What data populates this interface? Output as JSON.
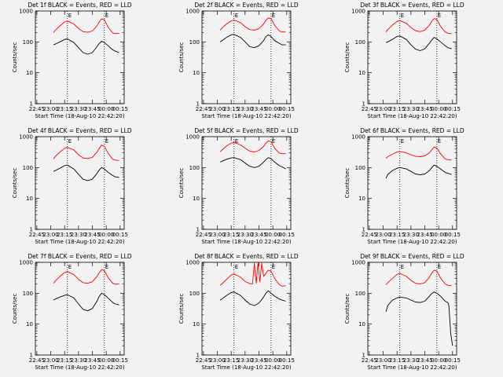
{
  "chart_data": [
    {
      "type": "line",
      "title": "Det 1f BLACK = Events, RED = LLD",
      "ylabel": "Counts/sec",
      "xlabel": "Start Time (18-Aug-10 22:42:20)",
      "xlim": [
        -16.6,
        79.4
      ],
      "ylim": [
        1,
        1000
      ],
      "yscale": "log",
      "x_ticks": [
        "22:45",
        "23:00",
        "23:15",
        "23:30",
        "23:45",
        "00:00",
        "00:15"
      ],
      "y_ticks": [
        "1",
        "10",
        "100",
        "1000"
      ],
      "markers": [
        {
          "x": 18,
          "label": "E"
        },
        {
          "x": 58,
          "label": "E"
        }
      ],
      "series": [
        {
          "color": "#ff0000",
          "x": [
            3,
            5,
            10,
            15,
            18,
            25,
            30,
            35,
            40,
            45,
            50,
            52,
            55,
            58,
            62,
            67,
            70,
            74
          ],
          "y": [
            200,
            240,
            330,
            440,
            470,
            380,
            270,
            215,
            205,
            225,
            330,
            420,
            560,
            520,
            300,
            195,
            185,
            190
          ]
        },
        {
          "color": "#000000",
          "x": [
            3,
            5,
            10,
            15,
            18,
            25,
            30,
            35,
            40,
            45,
            50,
            52,
            55,
            58,
            62,
            67,
            70,
            74
          ],
          "y": [
            80,
            85,
            100,
            120,
            125,
            95,
            65,
            45,
            40,
            45,
            70,
            85,
            105,
            95,
            75,
            55,
            50,
            45
          ]
        }
      ]
    },
    {
      "type": "line",
      "title": "Det 2f BLACK = Events, RED = LLD",
      "ylabel": "Counts/sec",
      "xlabel": "Start Time (18-Aug-10 22:42:20)",
      "xlim": [
        -16.6,
        79.4
      ],
      "ylim": [
        1,
        1000
      ],
      "yscale": "log",
      "x_ticks": [
        "22:45",
        "23:00",
        "23:15",
        "23:30",
        "23:45",
        "00:00",
        "00:15"
      ],
      "y_ticks": [
        "1",
        "10",
        "100",
        "1000"
      ],
      "markers": [
        {
          "x": 18,
          "label": "E"
        },
        {
          "x": 58,
          "label": "E"
        }
      ],
      "series": [
        {
          "color": "#ff0000",
          "x": [
            3,
            5,
            10,
            15,
            18,
            25,
            30,
            35,
            40,
            45,
            50,
            52,
            55,
            58,
            62,
            67,
            70,
            74
          ],
          "y": [
            240,
            280,
            380,
            480,
            510,
            420,
            310,
            250,
            240,
            270,
            380,
            470,
            600,
            560,
            340,
            225,
            210,
            210
          ]
        },
        {
          "color": "#000000",
          "x": [
            3,
            5,
            10,
            15,
            18,
            25,
            30,
            35,
            40,
            45,
            50,
            52,
            55,
            58,
            62,
            67,
            70,
            74
          ],
          "y": [
            100,
            110,
            140,
            170,
            175,
            140,
            100,
            70,
            65,
            75,
            110,
            140,
            170,
            150,
            110,
            90,
            80,
            80
          ]
        }
      ]
    },
    {
      "type": "line",
      "title": "Det 3f BLACK = Events, RED = LLD",
      "ylabel": "Counts/sec",
      "xlabel": "Start Time (18-Aug-10 22:42:20)",
      "xlim": [
        -16.6,
        79.4
      ],
      "ylim": [
        1,
        1000
      ],
      "yscale": "log",
      "x_ticks": [
        "22:45",
        "23:00",
        "23:15",
        "23:30",
        "23:45",
        "00:00",
        "00:15"
      ],
      "y_ticks": [
        "1",
        "10",
        "100",
        "1000"
      ],
      "markers": [
        {
          "x": 18,
          "label": "E"
        },
        {
          "x": 58,
          "label": "E"
        }
      ],
      "series": [
        {
          "color": "#ff0000",
          "x": [
            3,
            5,
            10,
            15,
            18,
            25,
            30,
            35,
            40,
            45,
            50,
            52,
            55,
            58,
            62,
            67,
            70,
            74
          ],
          "y": [
            210,
            250,
            350,
            460,
            490,
            400,
            290,
            230,
            215,
            240,
            350,
            440,
            570,
            530,
            320,
            210,
            190,
            185
          ]
        },
        {
          "color": "#000000",
          "x": [
            3,
            5,
            10,
            15,
            18,
            25,
            30,
            35,
            40,
            45,
            50,
            52,
            55,
            58,
            62,
            67,
            70,
            74
          ],
          "y": [
            95,
            100,
            120,
            150,
            155,
            120,
            80,
            58,
            52,
            60,
            90,
            110,
            140,
            125,
            100,
            75,
            65,
            60
          ]
        }
      ]
    },
    {
      "type": "line",
      "title": "Det 4f BLACK = Events, RED = LLD",
      "ylabel": "Counts/sec",
      "xlabel": "Start Time (18-Aug-10 22:42:20)",
      "xlim": [
        -16.6,
        79.4
      ],
      "ylim": [
        1,
        1000
      ],
      "yscale": "log",
      "x_ticks": [
        "22:45",
        "23:00",
        "23:15",
        "23:30",
        "23:45",
        "00:00",
        "00:15"
      ],
      "y_ticks": [
        "1",
        "10",
        "100",
        "1000"
      ],
      "markers": [
        {
          "x": 18,
          "label": "E"
        },
        {
          "x": 58,
          "label": "E"
        }
      ],
      "series": [
        {
          "color": "#ff0000",
          "x": [
            3,
            5,
            10,
            15,
            18,
            25,
            30,
            35,
            40,
            45,
            50,
            52,
            55,
            58,
            62,
            67,
            70,
            74
          ],
          "y": [
            190,
            230,
            320,
            420,
            450,
            370,
            260,
            205,
            195,
            215,
            315,
            400,
            530,
            490,
            290,
            185,
            175,
            170
          ]
        },
        {
          "color": "#000000",
          "x": [
            3,
            5,
            10,
            15,
            18,
            25,
            30,
            35,
            40,
            45,
            50,
            52,
            55,
            58,
            62,
            67,
            70,
            74
          ],
          "y": [
            75,
            80,
            95,
            115,
            120,
            90,
            60,
            42,
            38,
            42,
            65,
            80,
            100,
            90,
            70,
            55,
            50,
            48
          ]
        }
      ]
    },
    {
      "type": "line",
      "title": "Det 5f BLACK = Events, RED = LLD",
      "ylabel": "Counts/sec",
      "xlabel": "Start Time (18-Aug-10 22:42:20)",
      "xlim": [
        -16.6,
        79.4
      ],
      "ylim": [
        1,
        1000
      ],
      "yscale": "log",
      "x_ticks": [
        "22:45",
        "23:00",
        "23:15",
        "23:30",
        "23:45",
        "00:00",
        "00:15"
      ],
      "y_ticks": [
        "1",
        "10",
        "100",
        "1000"
      ],
      "markers": [
        {
          "x": 18,
          "label": "E"
        },
        {
          "x": 58,
          "label": "E"
        }
      ],
      "series": [
        {
          "color": "#ff0000",
          "x": [
            3,
            5,
            10,
            15,
            18,
            25,
            30,
            35,
            40,
            45,
            50,
            52,
            55,
            58,
            62,
            67,
            70,
            74
          ],
          "y": [
            320,
            370,
            500,
            620,
            650,
            540,
            420,
            340,
            320,
            360,
            480,
            590,
            730,
            690,
            420,
            290,
            280,
            280
          ]
        },
        {
          "color": "#000000",
          "x": [
            3,
            5,
            10,
            15,
            18,
            25,
            30,
            35,
            40,
            45,
            50,
            52,
            55,
            58,
            62,
            67,
            70,
            74
          ],
          "y": [
            150,
            160,
            185,
            205,
            210,
            180,
            140,
            110,
            100,
            110,
            150,
            175,
            210,
            195,
            150,
            115,
            105,
            90
          ]
        }
      ]
    },
    {
      "type": "line",
      "title": "Det 6f BLACK = Events, RED = LLD",
      "ylabel": "Counts/sec",
      "xlabel": "Start Time (18-Aug-10 22:42:20)",
      "xlim": [
        -16.6,
        79.4
      ],
      "ylim": [
        1,
        1000
      ],
      "yscale": "log",
      "x_ticks": [
        "22:45",
        "23:00",
        "23:15",
        "23:30",
        "23:45",
        "00:00",
        "00:15"
      ],
      "y_ticks": [
        "1",
        "10",
        "100",
        "1000"
      ],
      "markers": [
        {
          "x": 18,
          "label": "E"
        },
        {
          "x": 58,
          "label": "E"
        }
      ],
      "series": [
        {
          "color": "#ff0000",
          "x": [
            3,
            5,
            10,
            15,
            18,
            25,
            30,
            35,
            40,
            45,
            50,
            52,
            55,
            58,
            62,
            67,
            70,
            74
          ],
          "y": [
            200,
            225,
            270,
            320,
            330,
            300,
            260,
            230,
            225,
            240,
            300,
            360,
            460,
            430,
            280,
            190,
            180,
            175
          ]
        },
        {
          "color": "#000000",
          "x": [
            3,
            5,
            10,
            15,
            18,
            25,
            30,
            35,
            40,
            45,
            50,
            52,
            55,
            58,
            62,
            67,
            70,
            74
          ],
          "y": [
            45,
            60,
            80,
            95,
            100,
            90,
            75,
            62,
            58,
            62,
            80,
            95,
            120,
            110,
            90,
            70,
            65,
            60
          ]
        }
      ]
    },
    {
      "type": "line",
      "title": "Det 7f BLACK = Events, RED = LLD",
      "ylabel": "Counts/sec",
      "xlabel": "Start Time (18-Aug-10 22:42:20)",
      "xlim": [
        -16.6,
        79.4
      ],
      "ylim": [
        1,
        1000
      ],
      "yscale": "log",
      "x_ticks": [
        "22:45",
        "23:00",
        "23:15",
        "23:30",
        "23:45",
        "00:00",
        "00:15"
      ],
      "y_ticks": [
        "1",
        "10",
        "100",
        "1000"
      ],
      "markers": [
        {
          "x": 18,
          "label": "E"
        },
        {
          "x": 58,
          "label": "E"
        }
      ],
      "series": [
        {
          "color": "#ff0000",
          "x": [
            3,
            5,
            10,
            15,
            18,
            25,
            30,
            35,
            40,
            45,
            50,
            52,
            55,
            58,
            62,
            67,
            70,
            74
          ],
          "y": [
            210,
            250,
            350,
            470,
            500,
            400,
            280,
            220,
            210,
            235,
            350,
            440,
            580,
            540,
            320,
            210,
            195,
            200
          ]
        },
        {
          "color": "#000000",
          "x": [
            3,
            5,
            10,
            15,
            18,
            25,
            30,
            35,
            40,
            45,
            50,
            52,
            55,
            58,
            62,
            67,
            70,
            74
          ],
          "y": [
            60,
            65,
            75,
            85,
            90,
            70,
            45,
            30,
            27,
            32,
            55,
            75,
            100,
            90,
            70,
            50,
            45,
            42
          ]
        }
      ]
    },
    {
      "type": "line",
      "title": "Det 8f BLACK = Events, RED = LLD",
      "ylabel": "Counts/sec",
      "xlabel": "Start Time (18-Aug-10 22:42:20)",
      "xlim": [
        -16.6,
        79.4
      ],
      "ylim": [
        1,
        1000
      ],
      "yscale": "log",
      "x_ticks": [
        "22:45",
        "23:00",
        "23:15",
        "23:30",
        "23:45",
        "00:00",
        "00:15"
      ],
      "y_ticks": [
        "1",
        "10",
        "100",
        "1000"
      ],
      "markers": [
        {
          "x": 18,
          "label": "E"
        },
        {
          "x": 58,
          "label": "E"
        }
      ],
      "series": [
        {
          "color": "#ff0000",
          "x": [
            3,
            5,
            10,
            15,
            18,
            25,
            30,
            35,
            38,
            40,
            42,
            44,
            46,
            48,
            50,
            52,
            55,
            58,
            62,
            67,
            70,
            74
          ],
          "y": [
            180,
            200,
            280,
            390,
            420,
            330,
            240,
            205,
            200,
            950,
            210,
            950,
            230,
            950,
            350,
            420,
            560,
            520,
            300,
            190,
            170,
            175
          ]
        },
        {
          "color": "#000000",
          "x": [
            3,
            5,
            10,
            15,
            18,
            25,
            30,
            35,
            40,
            45,
            50,
            52,
            55,
            58,
            62,
            67,
            70,
            74
          ],
          "y": [
            60,
            65,
            85,
            105,
            110,
            85,
            60,
            45,
            40,
            48,
            75,
            95,
            120,
            100,
            80,
            65,
            60,
            55
          ]
        }
      ]
    },
    {
      "type": "line",
      "title": "Det 9f BLACK = Events, RED = LLD",
      "ylabel": "Counts/sec",
      "xlabel": "Start Time (18-Aug-10 22:42:20)",
      "xlim": [
        -16.6,
        79.4
      ],
      "ylim": [
        1,
        1000
      ],
      "yscale": "log",
      "x_ticks": [
        "22:45",
        "23:00",
        "23:15",
        "23:30",
        "23:45",
        "00:00",
        "00:15"
      ],
      "y_ticks": [
        "1",
        "10",
        "100",
        "1000"
      ],
      "markers": [
        {
          "x": 18,
          "label": "E"
        },
        {
          "x": 58,
          "label": "E"
        }
      ],
      "series": [
        {
          "color": "#ff0000",
          "x": [
            3,
            5,
            10,
            15,
            18,
            25,
            30,
            35,
            40,
            45,
            50,
            52,
            55,
            58,
            62,
            67,
            70,
            74
          ],
          "y": [
            190,
            220,
            300,
            410,
            440,
            350,
            260,
            210,
            200,
            220,
            330,
            420,
            560,
            520,
            310,
            200,
            180,
            175
          ]
        },
        {
          "color": "#000000",
          "x": [
            3,
            5,
            10,
            15,
            18,
            25,
            30,
            35,
            40,
            45,
            50,
            52,
            55,
            58,
            62,
            67,
            70,
            71,
            73,
            75
          ],
          "y": [
            25,
            40,
            60,
            70,
            75,
            70,
            60,
            52,
            50,
            55,
            80,
            95,
            110,
            100,
            80,
            55,
            50,
            40,
            5,
            2
          ]
        }
      ]
    }
  ]
}
